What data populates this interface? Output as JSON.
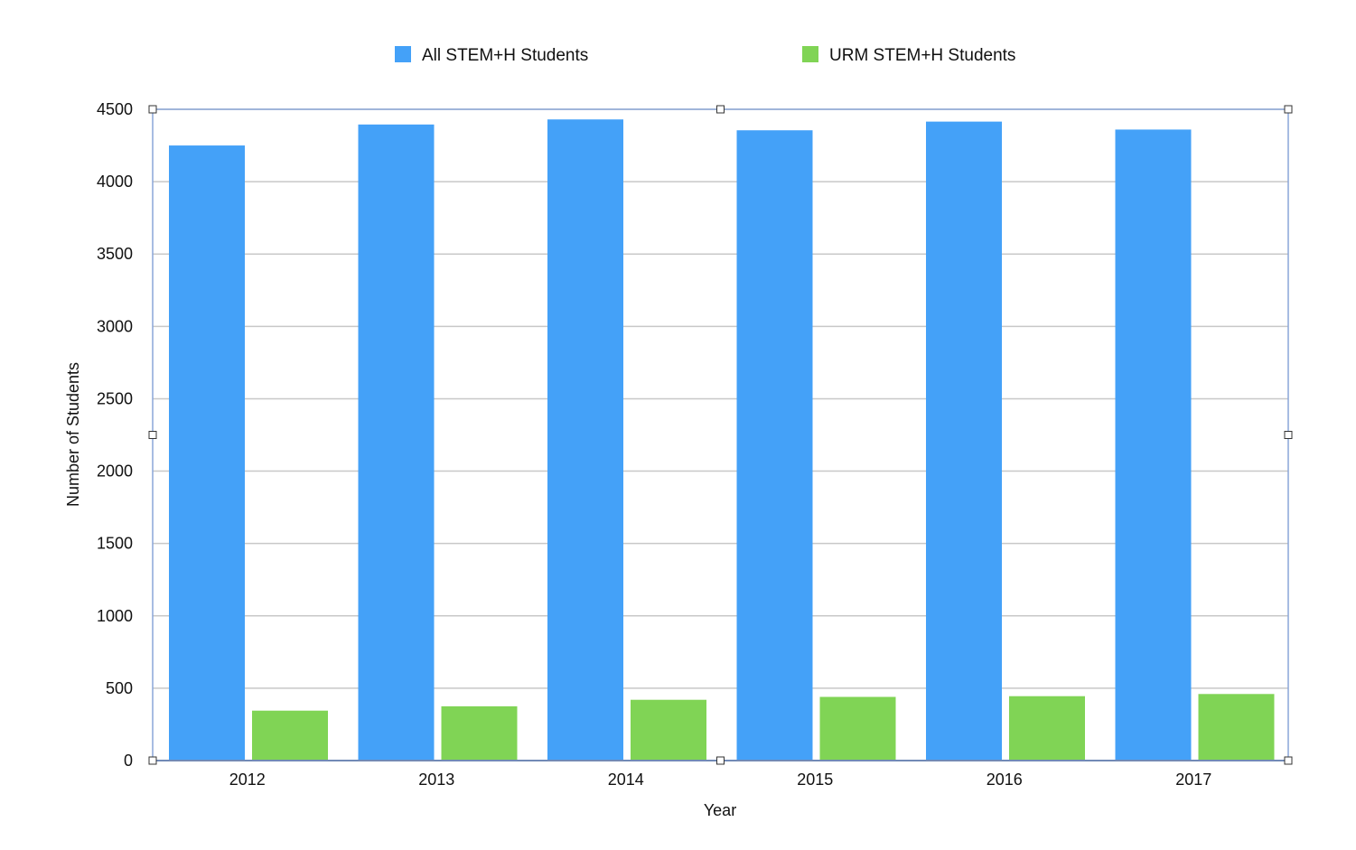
{
  "chart_data": {
    "type": "bar",
    "title": "",
    "xlabel": "Year",
    "ylabel": "Number of Students",
    "categories": [
      "2012",
      "2013",
      "2014",
      "2015",
      "2016",
      "2017"
    ],
    "series": [
      {
        "name": "All STEM+H Students",
        "color": "#44a1f8",
        "values": [
          4250,
          4395,
          4430,
          4355,
          4415,
          4360
        ]
      },
      {
        "name": "URM STEM+H Students",
        "color": "#80d455",
        "values": [
          345,
          375,
          420,
          440,
          445,
          460
        ]
      }
    ],
    "ylim": [
      0,
      4500
    ],
    "yticks": [
      "0",
      "500",
      "1000",
      "1500",
      "2000",
      "2500",
      "3000",
      "3500",
      "4000",
      "4500"
    ],
    "grid": true,
    "legend_position": "top",
    "selection_frame": true
  }
}
